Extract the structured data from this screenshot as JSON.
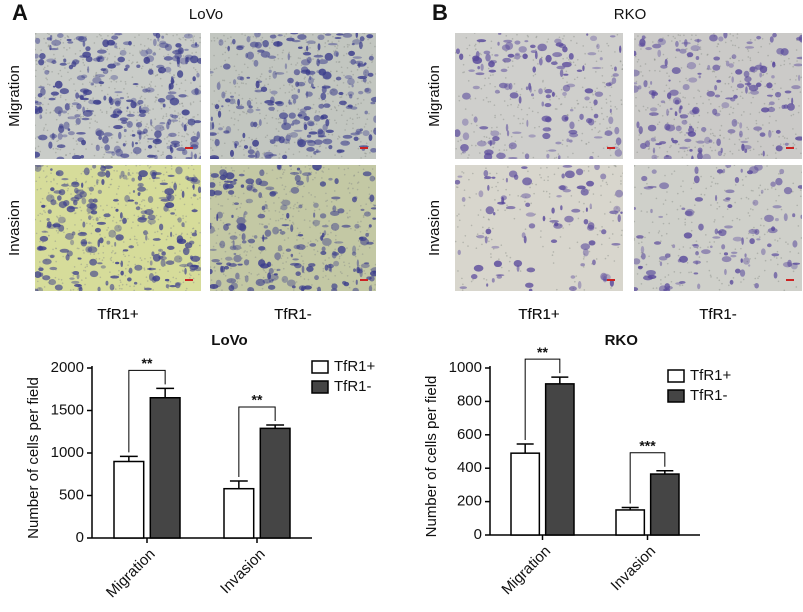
{
  "panels": [
    {
      "label": "A",
      "title": "LoVo",
      "row_labels": [
        "Migration",
        "Invasion"
      ],
      "column_labels": [
        "TfR1+",
        "TfR1-"
      ]
    },
    {
      "label": "B",
      "title": "RKO",
      "row_labels": [
        "Migration",
        "Invasion"
      ],
      "column_labels": [
        "TfR1+",
        "TfR1-"
      ]
    }
  ],
  "chart_data": [
    {
      "type": "bar",
      "title": "LoVo",
      "y_label": "Number of cells per field",
      "categories": [
        "Migration",
        "Invasion"
      ],
      "series": [
        {
          "name": "TfR1+",
          "color": "#ffffff",
          "values": [
            900,
            580
          ],
          "errors": [
            60,
            90
          ]
        },
        {
          "name": "TfR1-",
          "color": "#454545",
          "values": [
            1650,
            1290
          ],
          "errors": [
            110,
            40
          ]
        }
      ],
      "significance": [
        "**",
        "**"
      ],
      "ylim": [
        0,
        2000
      ],
      "yticks": [
        0,
        500,
        1000,
        1500,
        2000
      ],
      "legend": "upper right"
    },
    {
      "type": "bar",
      "title": "RKO",
      "y_label": "Number of cells per field",
      "categories": [
        "Migration",
        "Invasion"
      ],
      "series": [
        {
          "name": "TfR1+",
          "color": "#ffffff",
          "values": [
            490,
            150
          ],
          "errors": [
            55,
            15
          ]
        },
        {
          "name": "TfR1-",
          "color": "#454545",
          "values": [
            905,
            365
          ],
          "errors": [
            40,
            20
          ]
        }
      ],
      "significance": [
        "**",
        "***"
      ],
      "ylim": [
        0,
        1000
      ],
      "yticks": [
        0,
        200,
        400,
        600,
        800,
        1000
      ],
      "legend": "upper right"
    }
  ]
}
